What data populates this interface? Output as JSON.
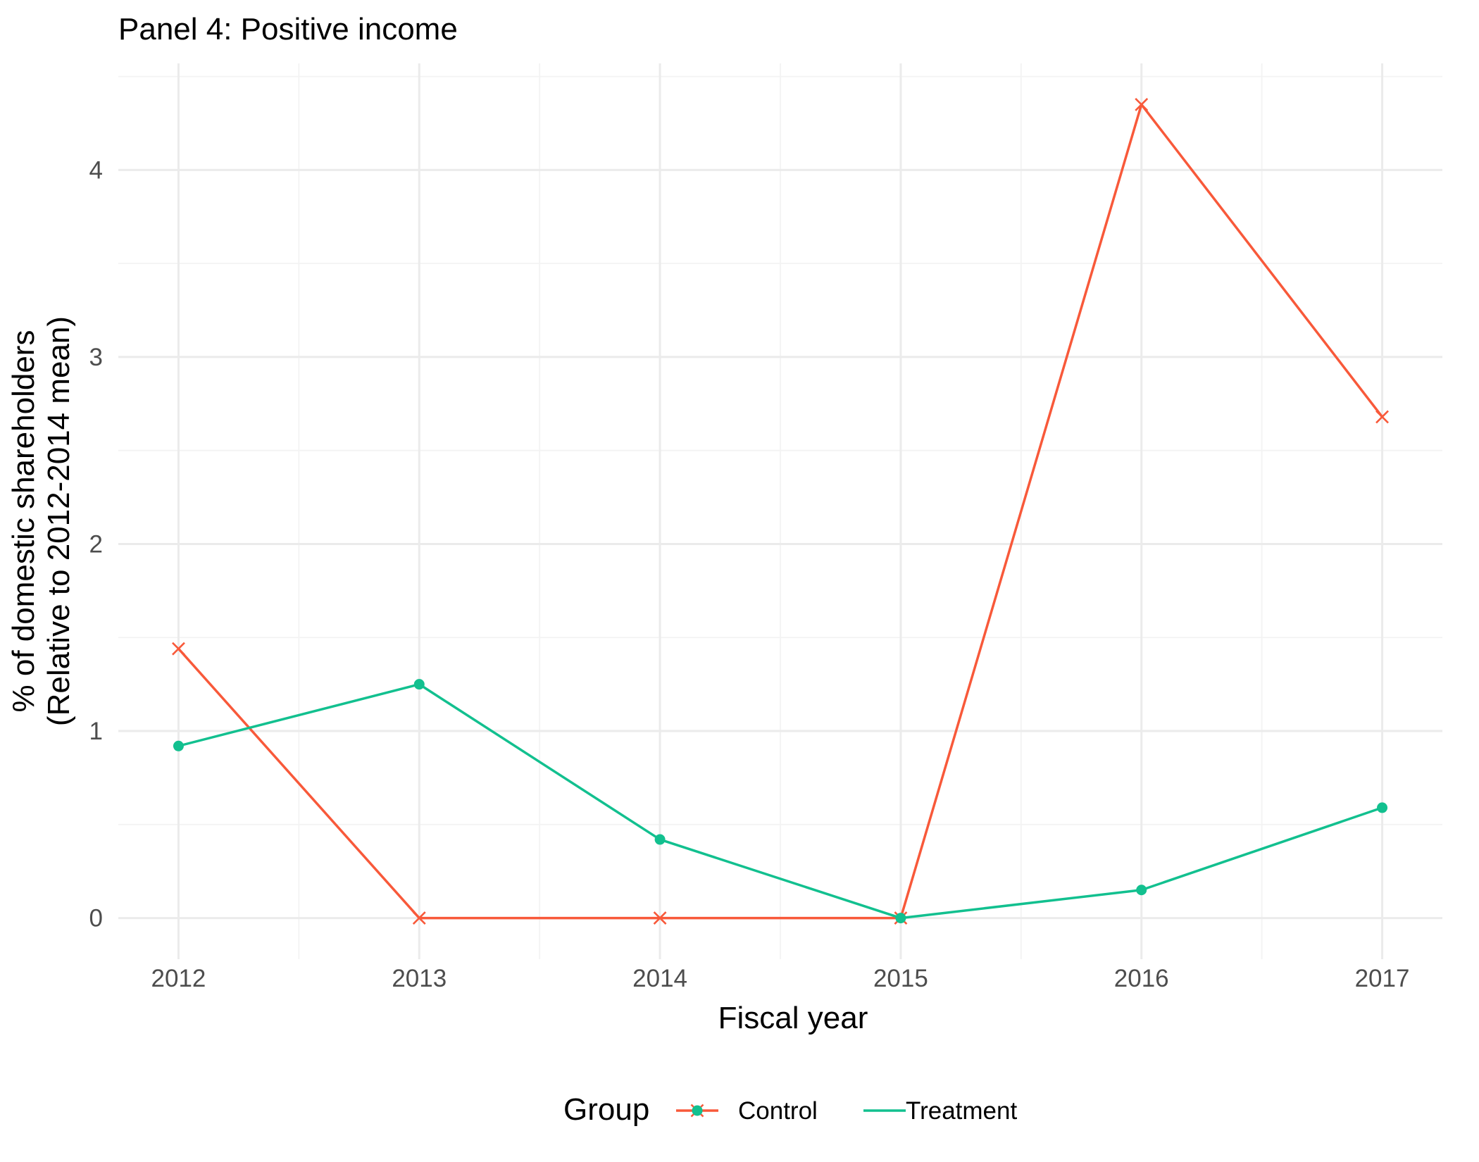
{
  "chart_data": {
    "type": "line",
    "title": "Panel 4: Positive income",
    "xlabel": "Fiscal year",
    "ylabel_lines": [
      "% of domestic shareholders",
      "(Relative to 2012-2014 mean)"
    ],
    "x": [
      2012,
      2013,
      2014,
      2015,
      2016,
      2017
    ],
    "x_tick_labels": [
      "2012",
      "2013",
      "2014",
      "2015",
      "2016",
      "2017"
    ],
    "y_tick_values": [
      0,
      1,
      2,
      3,
      4
    ],
    "y_tick_labels": [
      "0",
      "1",
      "2",
      "3",
      "4"
    ],
    "xlim": [
      2011.75,
      2017.25
    ],
    "ylim": [
      -0.22,
      4.57
    ],
    "grid": true,
    "legend": {
      "title": "Group",
      "position": "bottom"
    },
    "series": [
      {
        "name": "Control",
        "color": "#f8593a",
        "marker": "x",
        "values": [
          1.44,
          0,
          0,
          0,
          4.35,
          2.68
        ]
      },
      {
        "name": "Treatment",
        "color": "#12c08f",
        "marker": "circle",
        "values": [
          0.92,
          1.25,
          0.42,
          0,
          0.15,
          0.59
        ]
      }
    ]
  }
}
